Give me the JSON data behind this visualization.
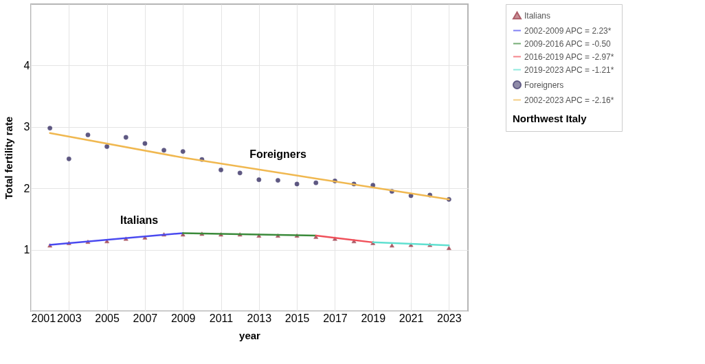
{
  "chart_data": {
    "type": "scatter",
    "xlabel": "year",
    "ylabel": "Total fertility rate",
    "legend_title": "Northwest Italy",
    "legend": "right",
    "grid": true,
    "xlim": [
      2001,
      2024
    ],
    "xticks": [
      2001,
      2003,
      2005,
      2007,
      2009,
      2011,
      2013,
      2015,
      2017,
      2019,
      2021,
      2023
    ],
    "ylim": [
      0,
      5
    ],
    "yticks": [
      {
        "value": 0,
        "label": null
      },
      1,
      2,
      3,
      4
    ],
    "x": [
      2002,
      2003,
      2004,
      2005,
      2006,
      2007,
      2008,
      2009,
      2010,
      2011,
      2012,
      2013,
      2014,
      2015,
      2016,
      2017,
      2018,
      2019,
      2020,
      2021,
      2022,
      2023
    ],
    "series": [
      {
        "name": "Italians",
        "marker": "triangle",
        "color": "#8b1a2a",
        "values": [
          1.07,
          1.11,
          1.13,
          1.14,
          1.18,
          1.2,
          1.25,
          1.25,
          1.26,
          1.25,
          1.25,
          1.23,
          1.23,
          1.23,
          1.21,
          1.18,
          1.14,
          1.11,
          1.07,
          1.08,
          1.08,
          1.03
        ]
      },
      {
        "name": "2002-2009 APC = 2.23*",
        "type": "line",
        "color": "#4a4af0",
        "x": [
          2002,
          2009
        ],
        "values": [
          1.08,
          1.27
        ]
      },
      {
        "name": "2009-2016 APC = -0.50",
        "type": "line",
        "color": "#3a8a3a",
        "x": [
          2009,
          2016
        ],
        "values": [
          1.27,
          1.23
        ]
      },
      {
        "name": "2016-2019 APC = -2.97*",
        "type": "line",
        "color": "#f0505a",
        "x": [
          2016,
          2019
        ],
        "values": [
          1.23,
          1.12
        ]
      },
      {
        "name": "2019-2023 APC = -1.21*",
        "type": "line",
        "color": "#60e0d0",
        "x": [
          2019,
          2023
        ],
        "values": [
          1.12,
          1.07
        ]
      },
      {
        "name": "Foreigners",
        "marker": "circle",
        "color": "#1c1450",
        "values": [
          2.98,
          2.48,
          2.87,
          2.68,
          2.83,
          2.73,
          2.62,
          2.6,
          2.47,
          2.3,
          2.25,
          2.14,
          2.13,
          2.07,
          2.09,
          2.12,
          2.07,
          2.05,
          1.95,
          1.88,
          1.89,
          1.82
        ]
      },
      {
        "name": "2002-2023 APC = -2.16*",
        "type": "line",
        "color": "#f0b850",
        "x": [
          2002,
          2009,
          2016,
          2023
        ],
        "values": [
          2.9,
          2.5,
          2.16,
          1.82
        ]
      }
    ],
    "annotations": [
      {
        "text": "Foreigners",
        "x": 2014,
        "y": 2.26
      },
      {
        "text": "Italians",
        "x": 2006.7,
        "y": 1.19
      }
    ]
  }
}
